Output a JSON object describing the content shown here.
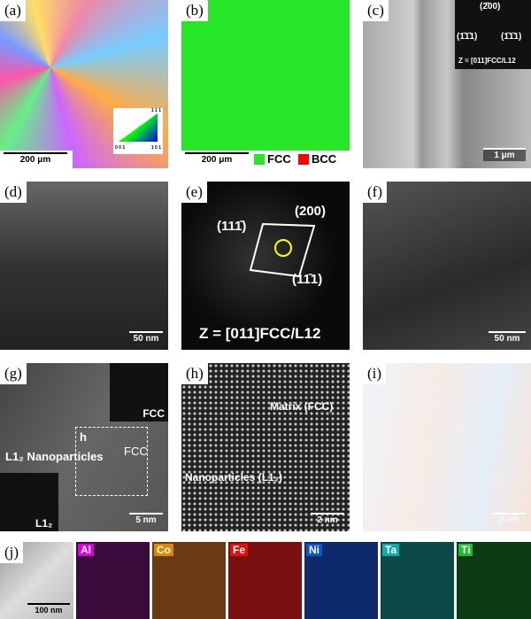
{
  "panels": [
    {
      "label": "(a)",
      "scale_bar": "200 μm",
      "ipf_key": [
        "1 1 1",
        "0 0 1",
        "1 0 1"
      ]
    },
    {
      "label": "(b)",
      "scale_bar": "200 μm",
      "legend": [
        "FCC",
        "BCC"
      ]
    },
    {
      "label": "(c)",
      "scale_bar": "1 μm",
      "spots": [
        "(2̄00)",
        "(1̄1̄1)",
        "(1̄1̄1)"
      ],
      "zone": "Z = [011]FCC/L12"
    },
    {
      "label": "(d)",
      "scale_bar": "50 nm"
    },
    {
      "label": "(e)",
      "spots": [
        "(111̄)",
        "(200)",
        "(11̄1)"
      ],
      "zone": "Z = [011]FCC/L12"
    },
    {
      "label": "(f)",
      "scale_bar": "50 nm"
    },
    {
      "label": "(g)",
      "scale_bar": "5 nm",
      "texts": [
        "FCC",
        "h",
        "FCC",
        "L1₂ Nanoparticles",
        "L1₂"
      ]
    },
    {
      "label": "(h)",
      "scale_bar": "2 nm",
      "texts": [
        "Matrix (FCC)",
        "Nanoparticles (L1₂)"
      ]
    },
    {
      "label": "(i)",
      "scale_bar": "2 nm"
    },
    {
      "label": "(j)",
      "scale_bar": "100 nm",
      "elements": [
        "Al",
        "Co",
        "Fe",
        "Ni",
        "Ta",
        "Ti"
      ]
    }
  ]
}
